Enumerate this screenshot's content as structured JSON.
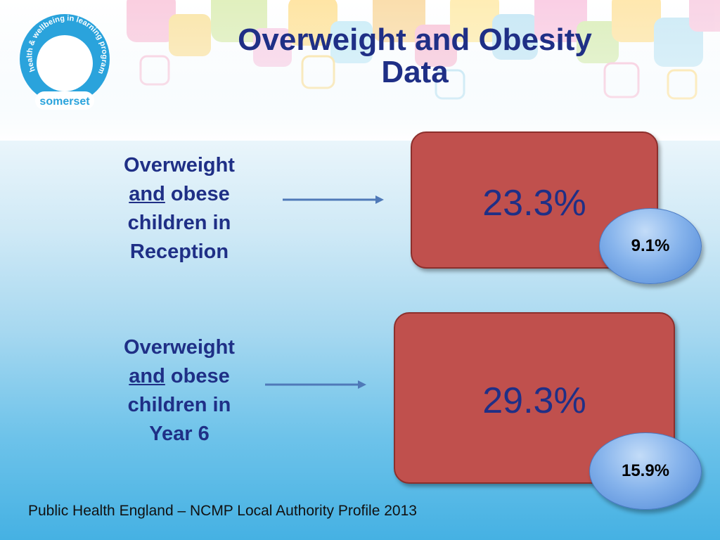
{
  "logo": {
    "arc_text": "health & wellbeing in learning programme",
    "label": "somerset"
  },
  "title": {
    "line1": "Overweight and Obesity",
    "line2": "Data"
  },
  "rows": [
    {
      "label_line1": "Overweight",
      "label_and": "and",
      "label_rest": " obese",
      "label_line3": "children in",
      "label_line4": "Reception",
      "value": "23.3%",
      "obese_value": "9.1%"
    },
    {
      "label_line1": "Overweight",
      "label_and": "and",
      "label_rest": " obese",
      "label_line3": "children in",
      "label_line4": "Year 6",
      "value": "29.3%",
      "obese_value": "15.9%"
    }
  ],
  "footer": {
    "source": "Public Health England – NCMP Local Authority Profile 2013"
  },
  "colors": {
    "title": "#1f2f86",
    "card": "#c0504d",
    "bubble": "#6fa0e2",
    "logo": "#2aa3dc"
  }
}
